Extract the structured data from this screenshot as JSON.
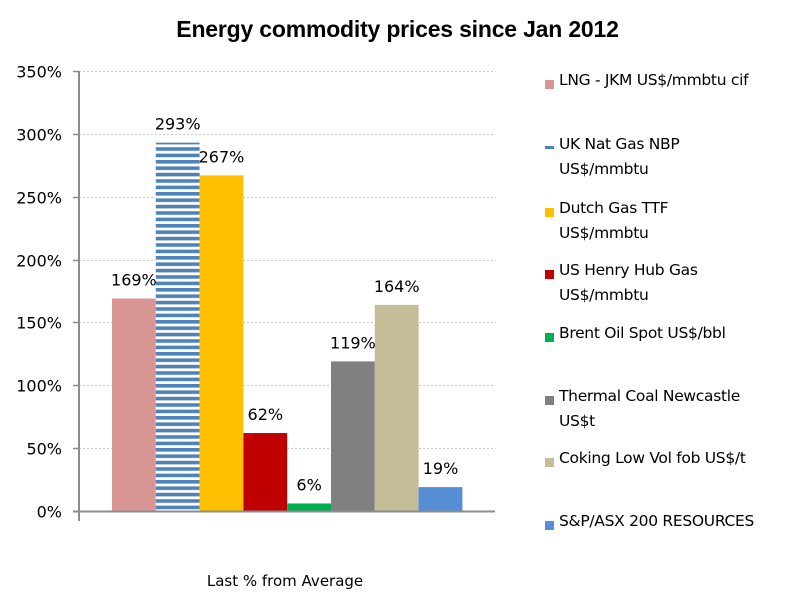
{
  "chart_data": {
    "type": "bar",
    "title": "Energy commodity prices since Jan 2012",
    "xlabel": "Last % from Average",
    "ylabel": "",
    "ylim": [
      0,
      350
    ],
    "yticks": [
      0,
      50,
      100,
      150,
      200,
      250,
      300,
      350
    ],
    "ytick_labels": [
      "0%",
      "50%",
      "100%",
      "150%",
      "200%",
      "250%",
      "300%",
      "350%"
    ],
    "grid": true,
    "legend_position": "right",
    "categories": [
      "Last % from Average"
    ],
    "series": [
      {
        "name": "LNG - JKM US$/mmbtu cif",
        "values": [
          169
        ],
        "label": "169%",
        "color": "#d99594",
        "pattern": "solid"
      },
      {
        "name": "UK Nat Gas NBP US$/mmbtu",
        "values": [
          293
        ],
        "label": "293%",
        "color": "#4f81bd",
        "pattern": "horizontal-stripes"
      },
      {
        "name": "Dutch Gas TTF US$/mmbtu",
        "values": [
          267
        ],
        "label": "267%",
        "color": "#ffc000",
        "pattern": "solid"
      },
      {
        "name": "US Henry Hub Gas US$/mmbtu",
        "values": [
          62
        ],
        "label": "62%",
        "color": "#c00000",
        "pattern": "solid"
      },
      {
        "name": "Brent Oil Spot US$/bbl",
        "values": [
          6
        ],
        "label": "6%",
        "color": "#00b050",
        "pattern": "solid"
      },
      {
        "name": "Thermal Coal Newcastle US$t",
        "values": [
          119
        ],
        "label": "119%",
        "color": "#808080",
        "pattern": "solid"
      },
      {
        "name": "Coking Low Vol fob US$/t",
        "values": [
          164
        ],
        "label": "164%",
        "color": "#c4bd97",
        "pattern": "solid"
      },
      {
        "name": "S&P/ASX 200 RESOURCES",
        "values": [
          19
        ],
        "label": "19%",
        "color": "#558ed5",
        "pattern": "solid"
      }
    ]
  },
  "legend": {
    "items": [
      {
        "line1": "LNG - JKM US$/mmbtu cif",
        "line2": ""
      },
      {
        "line1": "UK Nat Gas NBP",
        "line2": "US$/mmbtu"
      },
      {
        "line1": "Dutch Gas TTF",
        "line2": "US$/mmbtu"
      },
      {
        "line1": "US Henry Hub Gas",
        "line2": "US$/mmbtu"
      },
      {
        "line1": "Brent Oil Spot US$/bbl",
        "line2": ""
      },
      {
        "line1": "Thermal Coal Newcastle",
        "line2": "US$t"
      },
      {
        "line1": "Coking Low Vol fob US$/t",
        "line2": ""
      },
      {
        "line1": "S&P/ASX 200 RESOURCES",
        "line2": ""
      }
    ]
  }
}
